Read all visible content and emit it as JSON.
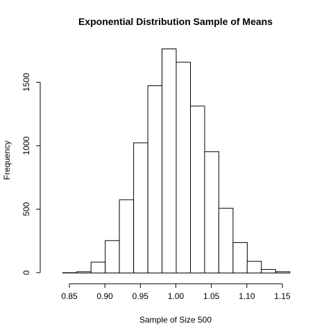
{
  "chart_data": {
    "type": "bar",
    "title": "Exponential Distribution Sample of Means",
    "xlabel": "Sample of Size 500",
    "ylabel": "Frequency",
    "bin_edges": [
      0.84,
      0.86,
      0.88,
      0.9,
      0.92,
      0.94,
      0.96,
      0.98,
      1.0,
      1.02,
      1.04,
      1.06,
      1.08,
      1.1,
      1.12,
      1.14,
      1.16
    ],
    "values": [
      2,
      10,
      85,
      255,
      577,
      1025,
      1475,
      1765,
      1660,
      1315,
      955,
      510,
      240,
      92,
      28,
      10
    ],
    "x_ticks": [
      0.85,
      0.9,
      0.95,
      1.0,
      1.05,
      1.1,
      1.15
    ],
    "x_tick_labels": [
      "0.85",
      "0.90",
      "0.95",
      "1.00",
      "1.05",
      "1.10",
      "1.15"
    ],
    "y_ticks": [
      0,
      500,
      1000,
      1500
    ],
    "y_tick_labels": [
      "0",
      "500",
      "1000",
      "1500"
    ],
    "xlim": [
      0.8236,
      1.1764
    ],
    "ylim": [
      0,
      1765
    ],
    "grid": false,
    "colors": {
      "bar_fill": "#ffffff",
      "bar_stroke": "#000000"
    }
  }
}
